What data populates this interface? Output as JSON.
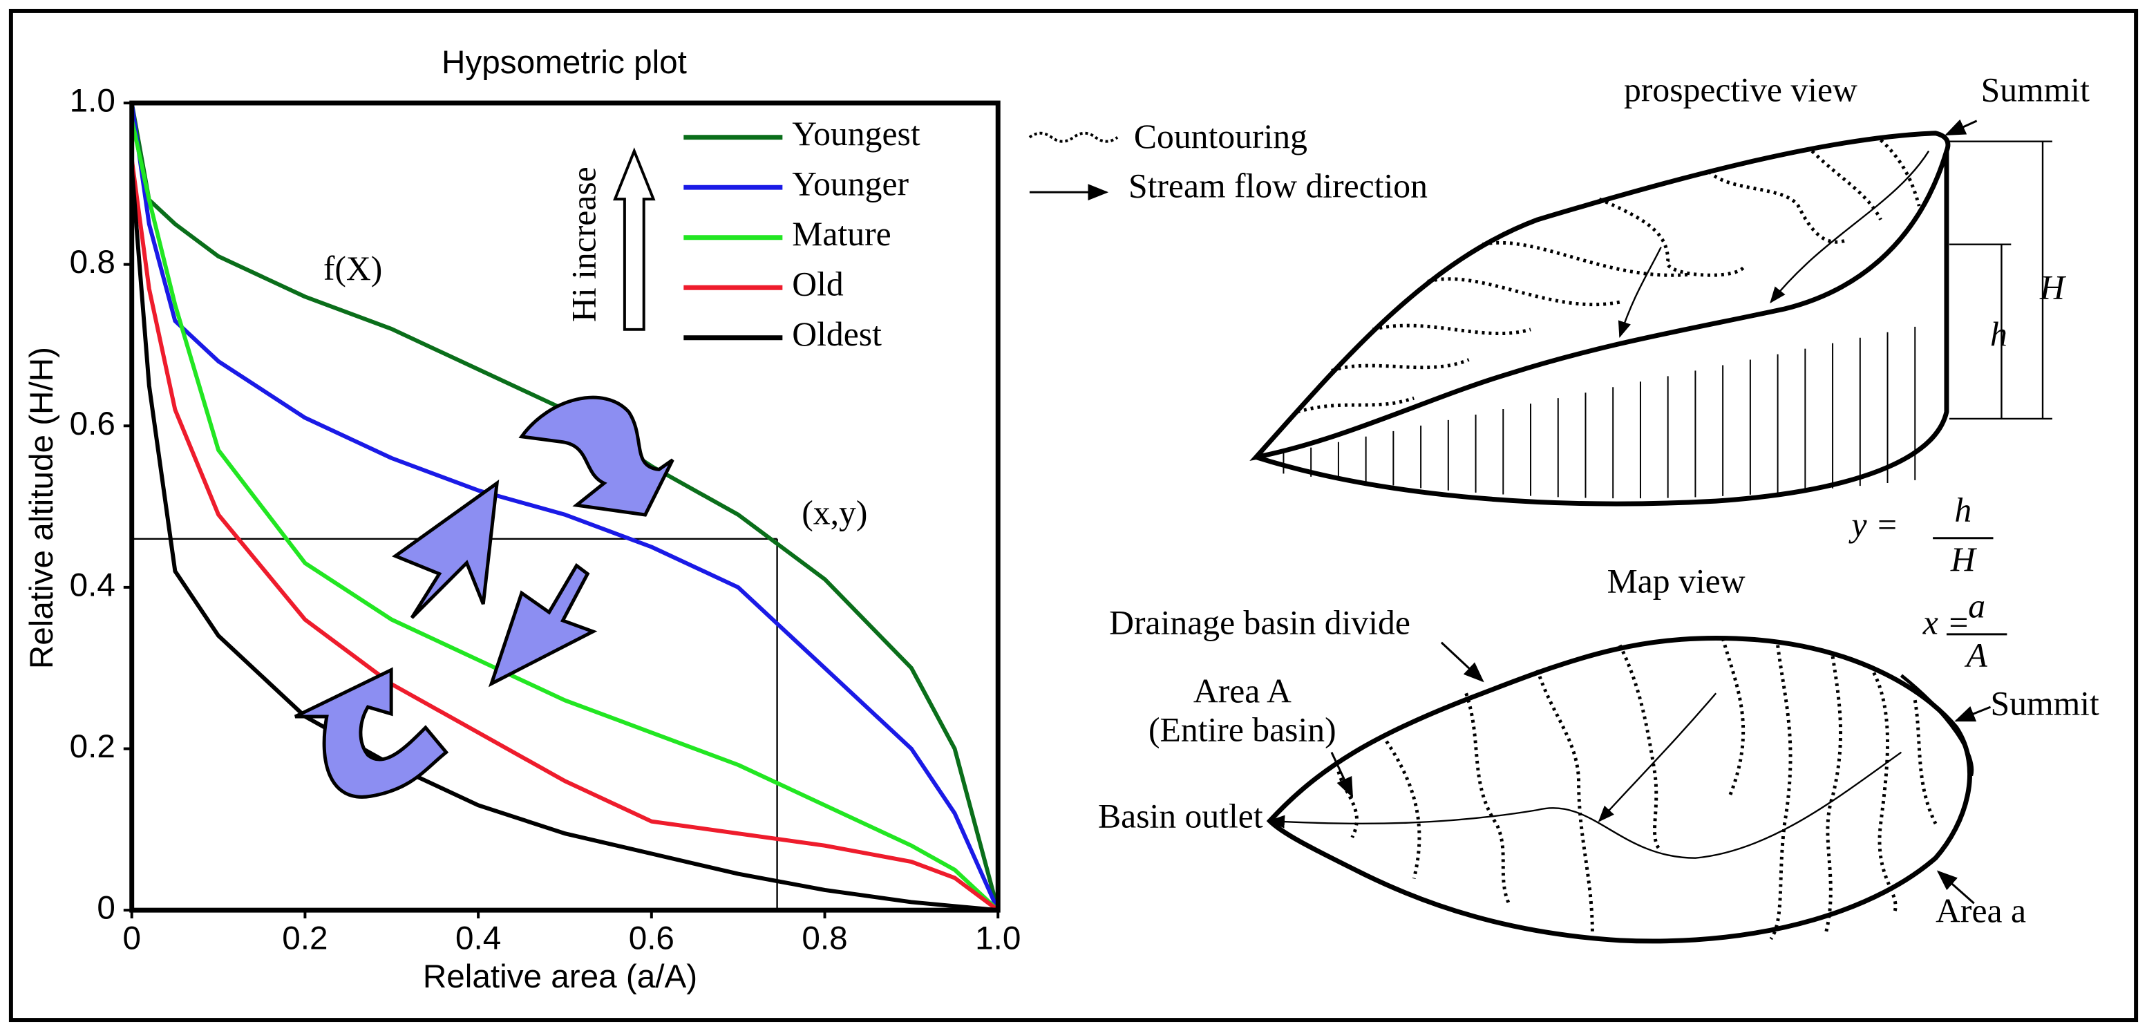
{
  "chart_data": {
    "type": "line",
    "title": "Hypsometric plot",
    "xlabel": "Relative area (a/A)",
    "ylabel": "Relative altitude (H/H)",
    "x": [
      0,
      0.02,
      0.05,
      0.1,
      0.2,
      0.3,
      0.4,
      0.5,
      0.6,
      0.7,
      0.8,
      0.9,
      0.95,
      1
    ],
    "series": [
      {
        "name": "Youngest",
        "color": "#0a6e1a",
        "values": [
          1,
          0.88,
          0.85,
          0.81,
          0.76,
          0.72,
          0.67,
          0.62,
          0.55,
          0.49,
          0.41,
          0.3,
          0.2,
          0
        ]
      },
      {
        "name": "Younger",
        "color": "#1a1ae6",
        "values": [
          1,
          0.85,
          0.73,
          0.68,
          0.61,
          0.56,
          0.52,
          0.49,
          0.45,
          0.4,
          0.3,
          0.2,
          0.12,
          0
        ]
      },
      {
        "name": "Mature",
        "color": "#22e622",
        "values": [
          0.98,
          0.88,
          0.75,
          0.57,
          0.43,
          0.36,
          0.31,
          0.26,
          0.22,
          0.18,
          0.13,
          0.08,
          0.05,
          0
        ]
      },
      {
        "name": "Old",
        "color": "#ee1c2c",
        "values": [
          0.93,
          0.77,
          0.62,
          0.49,
          0.36,
          0.28,
          0.22,
          0.16,
          0.11,
          0.095,
          0.08,
          0.06,
          0.04,
          0
        ]
      },
      {
        "name": "Oldest",
        "color": "#000000",
        "values": [
          0.92,
          0.65,
          0.42,
          0.34,
          0.24,
          0.18,
          0.13,
          0.095,
          0.07,
          0.045,
          0.025,
          0.01,
          0.005,
          0
        ]
      }
    ],
    "xlim": [
      0,
      1
    ],
    "ylim": [
      0,
      1
    ],
    "xticks": [
      0,
      0.2,
      0.4,
      0.6,
      0.8,
      {
        "value": 1,
        "label": "1.0"
      }
    ],
    "yticks": [
      0,
      0.2,
      0.4,
      0.6,
      0.8,
      {
        "value": 1,
        "label": "1.0"
      }
    ],
    "legend": "upper right",
    "point": {
      "x": 0.745,
      "y": 0.46
    },
    "annotations": {
      "curve": "f(X)",
      "point": "(x,y)",
      "arrow": "Hi increase"
    }
  },
  "diagram": {
    "perspective_title": "prospective view",
    "summit_top": "Summit",
    "legend_contour": "Countouring",
    "legend_stream": "Stream flow direction",
    "H": "H",
    "h": "h",
    "y_eq": "y =",
    "y_num": "h",
    "y_den": "H",
    "map_title": "Map view",
    "x_eq": "x =",
    "x_num": "a",
    "x_den": "A",
    "divide": "Drainage basin divide",
    "area_A_1": "Area A",
    "area_A_2": "(Entire basin)",
    "outlet": "Basin outlet",
    "summit_map": "Summit",
    "area_a": "Area a"
  }
}
